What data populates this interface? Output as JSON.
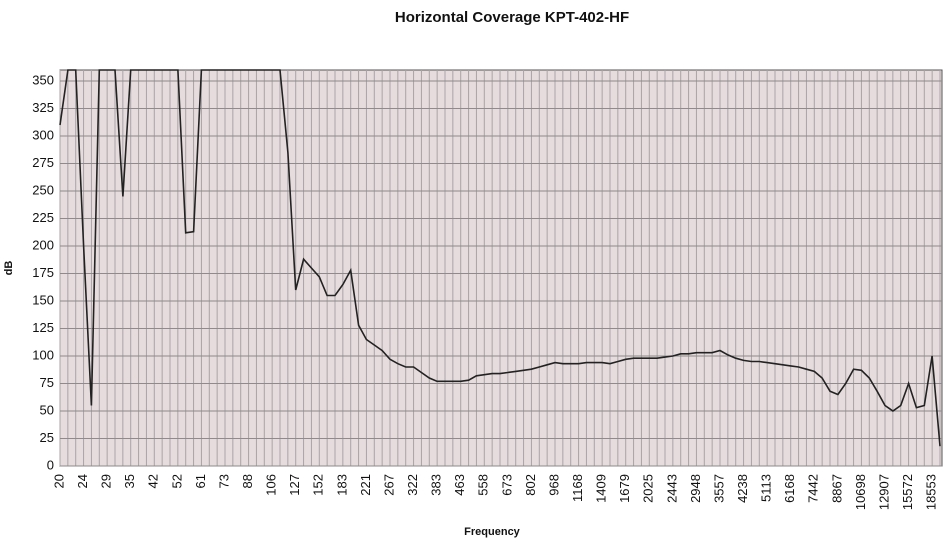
{
  "chart_data": {
    "type": "line",
    "title": "Horizontal Coverage KPT-402-HF",
    "x_label": "Frequency",
    "y_label": "dB",
    "categories": [
      "20",
      null,
      null,
      "24",
      null,
      null,
      "29",
      null,
      null,
      "35",
      null,
      null,
      "42",
      null,
      null,
      "52",
      null,
      null,
      "61",
      null,
      null,
      "73",
      null,
      null,
      "88",
      null,
      null,
      "106",
      null,
      null,
      "127",
      null,
      null,
      "152",
      null,
      null,
      "183",
      null,
      null,
      "221",
      null,
      null,
      "267",
      null,
      null,
      "322",
      null,
      null,
      "383",
      null,
      null,
      "463",
      null,
      null,
      "558",
      null,
      null,
      "673",
      null,
      null,
      "802",
      null,
      null,
      "968",
      null,
      null,
      "1168",
      null,
      null,
      "1409",
      null,
      null,
      "1679",
      null,
      null,
      "2025",
      null,
      null,
      "2443",
      null,
      null,
      "2948",
      null,
      null,
      "3557",
      null,
      null,
      "4238",
      null,
      null,
      "5113",
      null,
      null,
      "6168",
      null,
      null,
      "7442",
      null,
      null,
      "8867",
      null,
      null,
      "10698",
      null,
      null,
      "12907",
      null,
      null,
      "15572",
      null,
      null,
      "18553",
      null
    ],
    "series": [
      {
        "name": "dB",
        "color": "#222222",
        "values": [
          310,
          360,
          360,
          200,
          55,
          360,
          360,
          360,
          245,
          360,
          360,
          360,
          360,
          360,
          360,
          360,
          212,
          213,
          360,
          360,
          360,
          360,
          360,
          360,
          360,
          360,
          360,
          360,
          360,
          285,
          160,
          188,
          180,
          172,
          155,
          155,
          165,
          178,
          128,
          115,
          110,
          105,
          97,
          93,
          90,
          90,
          85,
          80,
          77,
          77,
          77,
          77,
          78,
          82,
          83,
          84,
          84,
          85,
          86,
          87,
          88,
          90,
          92,
          94,
          93,
          93,
          93,
          94,
          94,
          94,
          93,
          95,
          97,
          98,
          98,
          98,
          98,
          99,
          100,
          102,
          102,
          103,
          103,
          103,
          105,
          101,
          98,
          96,
          95,
          95,
          94,
          93,
          92,
          91,
          90,
          88,
          86,
          80,
          68,
          65,
          75,
          88,
          87,
          80,
          68,
          55,
          50,
          55,
          75,
          53,
          55,
          100,
          18
        ]
      }
    ],
    "ylim": [
      0,
      360
    ],
    "yticks": [
      0,
      25,
      50,
      75,
      100,
      125,
      150,
      175,
      200,
      225,
      250,
      275,
      300,
      325,
      350
    ],
    "grid": true
  }
}
